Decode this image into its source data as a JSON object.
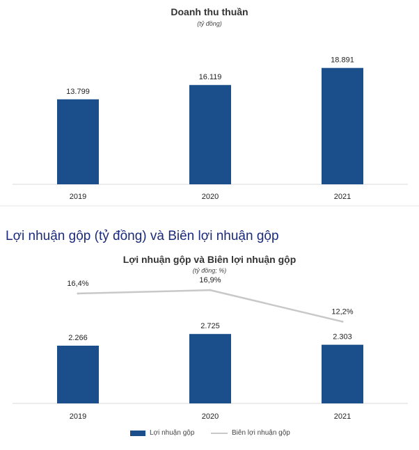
{
  "section_heading": "Lợi nhuận gộp (tỷ đồng) và Biên lợi nhuận gộp",
  "colors": {
    "bar": "#1a4f8c",
    "line": "#c8c8c8",
    "axis": "#d9d9d9"
  },
  "chart_data": [
    {
      "type": "bar",
      "title": "Doanh thu thuần",
      "subtitle": "(tỷ đồng)",
      "categories": [
        "2019",
        "2020",
        "2021"
      ],
      "values": [
        13799,
        16119,
        18891
      ],
      "data_labels": [
        "13.799",
        "16.119",
        "18.891"
      ],
      "ylim": [
        0,
        21000
      ],
      "grid": false,
      "legend": "none"
    },
    {
      "type": "bar+line",
      "title": "Lợi nhuận gộp và Biên lợi nhuận gộp",
      "subtitle": "(tỷ đồng; %)",
      "categories": [
        "2019",
        "2020",
        "2021"
      ],
      "series": [
        {
          "name": "Lợi nhuận gộp",
          "type": "bar",
          "axis": "left",
          "values": [
            2266,
            2725,
            2303
          ],
          "data_labels": [
            "2.266",
            "2.725",
            "2.303"
          ]
        },
        {
          "name": "Biên lợi nhuận gộp",
          "type": "line",
          "axis": "right",
          "values": [
            16.4,
            16.9,
            12.2
          ],
          "data_labels": [
            "16,4%",
            "16,9%",
            "12,2%"
          ]
        }
      ],
      "ylim_left": [
        0,
        8000
      ],
      "ylim_right": [
        0,
        22
      ],
      "grid": false,
      "legend": "bottom-center"
    }
  ]
}
